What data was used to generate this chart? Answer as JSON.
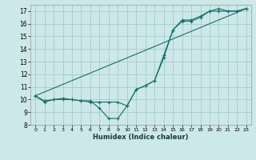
{
  "title": "",
  "xlabel": "Humidex (Indice chaleur)",
  "xlim": [
    -0.5,
    23.5
  ],
  "ylim": [
    8,
    17.5
  ],
  "yticks": [
    8,
    9,
    10,
    11,
    12,
    13,
    14,
    15,
    16,
    17
  ],
  "xticks": [
    0,
    1,
    2,
    3,
    4,
    5,
    6,
    7,
    8,
    9,
    10,
    11,
    12,
    13,
    14,
    15,
    16,
    17,
    18,
    19,
    20,
    21,
    22,
    23
  ],
  "bg_color": "#cce8e8",
  "grid_color": "#aacfcf",
  "line_color": "#1a6e6e",
  "line1_x": [
    0,
    1,
    2,
    3,
    4,
    5,
    6,
    7,
    8,
    9,
    10,
    11,
    12,
    13,
    14,
    15,
    16,
    17,
    18,
    19,
    20,
    21,
    22,
    23
  ],
  "line1_y": [
    10.3,
    9.8,
    10.0,
    10.0,
    10.0,
    9.9,
    9.9,
    9.3,
    8.5,
    8.5,
    9.5,
    10.8,
    11.1,
    11.5,
    13.5,
    15.5,
    16.3,
    16.3,
    16.6,
    17.0,
    17.0,
    17.0,
    17.0,
    17.2
  ],
  "line2_x": [
    0,
    1,
    2,
    3,
    4,
    5,
    6,
    7,
    8,
    9,
    10,
    11,
    12,
    13,
    14,
    15,
    16,
    17,
    18,
    19,
    20,
    21,
    22,
    23
  ],
  "line2_y": [
    10.3,
    9.9,
    10.0,
    10.1,
    10.0,
    9.9,
    9.8,
    9.8,
    9.8,
    9.8,
    9.5,
    10.8,
    11.1,
    11.5,
    13.3,
    15.5,
    16.2,
    16.2,
    16.5,
    17.0,
    17.2,
    17.0,
    17.0,
    17.2
  ],
  "line3_x": [
    0,
    23
  ],
  "line3_y": [
    10.3,
    17.2
  ]
}
